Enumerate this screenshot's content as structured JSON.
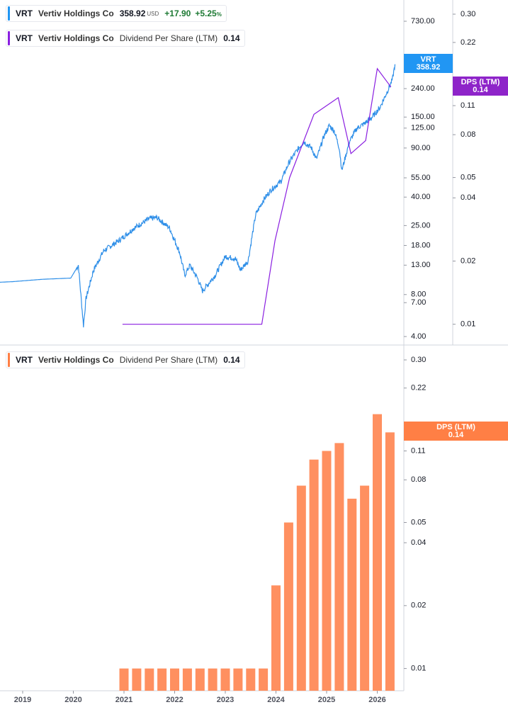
{
  "legend": {
    "price": {
      "ticker": "VRT",
      "name": "Vertiv Holdings Co",
      "price": "358.92",
      "currency": "USD",
      "change": "+17.90",
      "change_pct": "+5.25",
      "pct_sign": "%"
    },
    "dps_top": {
      "ticker": "VRT",
      "name": "Vertiv Holdings Co",
      "label": "Dividend Per Share (LTM)",
      "value": "0.14"
    },
    "dps_bottom": {
      "ticker": "VRT",
      "name": "Vertiv Holdings Co",
      "label": "Dividend Per Share (LTM)",
      "value": "0.14"
    }
  },
  "tags": {
    "price": {
      "line1": "VRT",
      "line2": "358.92"
    },
    "dps_top": {
      "line1": "DPS (LTM)",
      "line2": "0.14"
    },
    "dps_bottom": {
      "line1": "DPS (LTM)",
      "line2": "0.14"
    }
  },
  "colors": {
    "price": "#2f8fe8",
    "dps_line": "#8a1fe0",
    "bars": "#ff9060",
    "price_tag": "#2196f3",
    "dps_tag": "#8e24c9",
    "bar_tag": "#ff7f45",
    "grid": "#e0e3eb"
  },
  "chart_data": [
    {
      "type": "line",
      "title": "VRT Vertiv Holdings Co",
      "scale": "log",
      "price_axis_ticks": [
        730.0,
        240.0,
        150.0,
        125.0,
        90.0,
        55.0,
        40.0,
        25.0,
        18.0,
        13.0,
        8.0,
        7.0,
        4.0
      ],
      "price_axis_tick_labels": [
        "730.00",
        "240.00",
        "150.00",
        "125.00",
        "90.00",
        "55.00",
        "40.00",
        "25.00",
        "18.00",
        "13.00",
        "8.00",
        "7.00",
        "4.00"
      ],
      "dps_axis_ticks": [
        0.3,
        0.22,
        0.11,
        0.08,
        0.05,
        0.04,
        0.02,
        0.01
      ],
      "dps_axis_tick_labels": [
        "0.30",
        "0.22",
        "0.11",
        "0.08",
        "0.05",
        "0.04",
        "0.02",
        "0.01"
      ],
      "series": [
        {
          "name": "VRT",
          "axis": "price",
          "x": [
            2018.0,
            2018.8,
            2019.4,
            2019.95,
            2020.1,
            2020.2,
            2020.25,
            2020.4,
            2020.6,
            2020.9,
            2021.2,
            2021.5,
            2021.65,
            2021.9,
            2022.1,
            2022.2,
            2022.3,
            2022.45,
            2022.55,
            2022.8,
            2023.0,
            2023.2,
            2023.3,
            2023.45,
            2023.6,
            2023.75,
            2023.9,
            2024.1,
            2024.25,
            2024.4,
            2024.55,
            2024.7,
            2024.8,
            2024.95,
            2025.05,
            2025.15,
            2025.25,
            2025.3,
            2025.45,
            2025.6,
            2025.75,
            2025.9,
            2026.05,
            2026.2,
            2026.3,
            2026.35
          ],
          "y": [
            9.6,
            9.9,
            10.3,
            10.5,
            13.0,
            4.8,
            7.5,
            12.0,
            16.5,
            19.5,
            24.0,
            28.0,
            28.5,
            24.0,
            16.0,
            11.0,
            13.0,
            10.5,
            8.5,
            11.0,
            15.0,
            14.5,
            12.0,
            14.0,
            30.0,
            38.0,
            45.0,
            52.0,
            70.0,
            85.0,
            100.0,
            90.0,
            75.0,
            110.0,
            130.0,
            120.0,
            90.0,
            62.0,
            100.0,
            125.0,
            135.0,
            150.0,
            175.0,
            230.0,
            280.0,
            358.92
          ]
        },
        {
          "name": "Dividend Per Share (LTM)",
          "axis": "dps",
          "x": [
            2020.97,
            2023.72,
            2023.98,
            2024.27,
            2024.75,
            2025.23,
            2025.48,
            2025.77,
            2026.0,
            2026.27
          ],
          "y": [
            0.01,
            0.01,
            0.025,
            0.05,
            0.1,
            0.12,
            0.065,
            0.075,
            0.165,
            0.135
          ]
        }
      ]
    },
    {
      "type": "bar",
      "title": "VRT Vertiv Holdings Co Dividend Per Share (LTM)",
      "scale": "log",
      "xlabels": [
        "2019",
        "2020",
        "2021",
        "2022",
        "2023",
        "2024",
        "2025",
        "2026"
      ],
      "x_tick_years": [
        2019,
        2020,
        2021,
        2022,
        2023,
        2024,
        2025,
        2026
      ],
      "axis_ticks": [
        0.3,
        0.22,
        0.11,
        0.08,
        0.05,
        0.04,
        0.02,
        0.01
      ],
      "axis_tick_labels": [
        "0.30",
        "0.22",
        "0.11",
        "0.08",
        "0.05",
        "0.04",
        "0.02",
        "0.01"
      ],
      "x": [
        2021.0,
        2021.25,
        2021.5,
        2021.75,
        2022.0,
        2022.25,
        2022.5,
        2022.75,
        2023.0,
        2023.25,
        2023.5,
        2023.75,
        2024.0,
        2024.25,
        2024.5,
        2024.75,
        2025.0,
        2025.25,
        2025.5,
        2025.75,
        2026.0,
        2026.25
      ],
      "values": [
        0.01,
        0.01,
        0.01,
        0.01,
        0.01,
        0.01,
        0.01,
        0.01,
        0.01,
        0.01,
        0.01,
        0.01,
        0.025,
        0.05,
        0.075,
        0.1,
        0.11,
        0.12,
        0.065,
        0.075,
        0.165,
        0.135
      ]
    }
  ]
}
